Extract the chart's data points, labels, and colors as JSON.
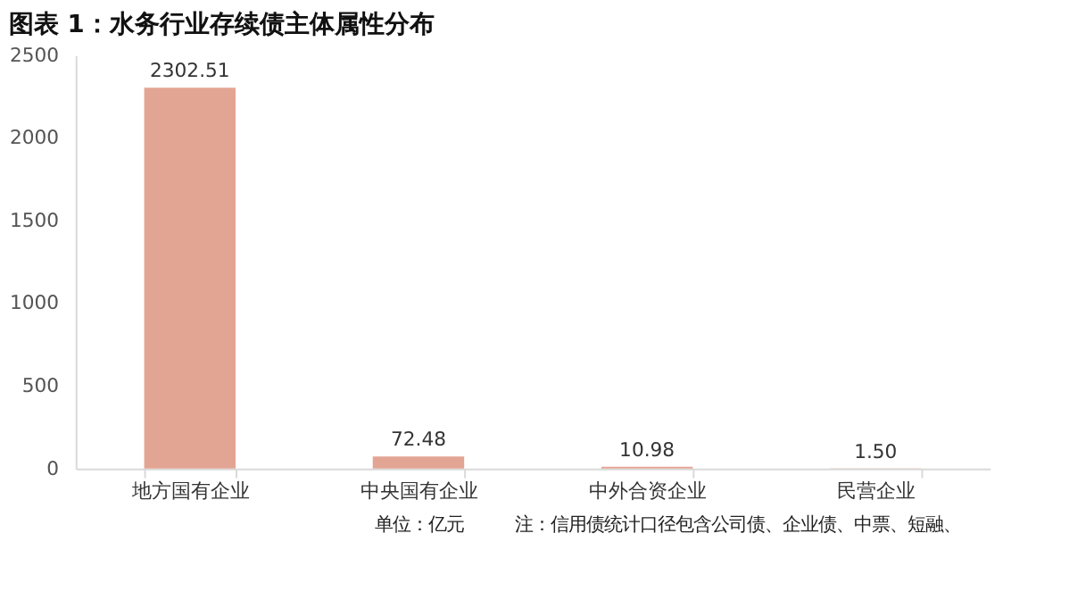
{
  "chart_data": {
    "type": "bar",
    "title": "图表 1：水务行业存续债主体属性分布",
    "categories": [
      "地方国有企业",
      "中央国有企业",
      "中外合资企业",
      "民营企业"
    ],
    "values": [
      2302.51,
      72.48,
      10.98,
      1.5
    ],
    "color": "#e3a593",
    "ylim": [
      0,
      2500
    ],
    "yticks": [
      0,
      500,
      1000,
      1500,
      2000,
      2500
    ],
    "value_labels": [
      "2302.51",
      "72.48",
      "10.98",
      "1.50"
    ],
    "grid": false,
    "annotations": [
      "单位：亿元",
      "注：信用债统计口径包含公司债、企业债、中票、短融、"
    ]
  }
}
